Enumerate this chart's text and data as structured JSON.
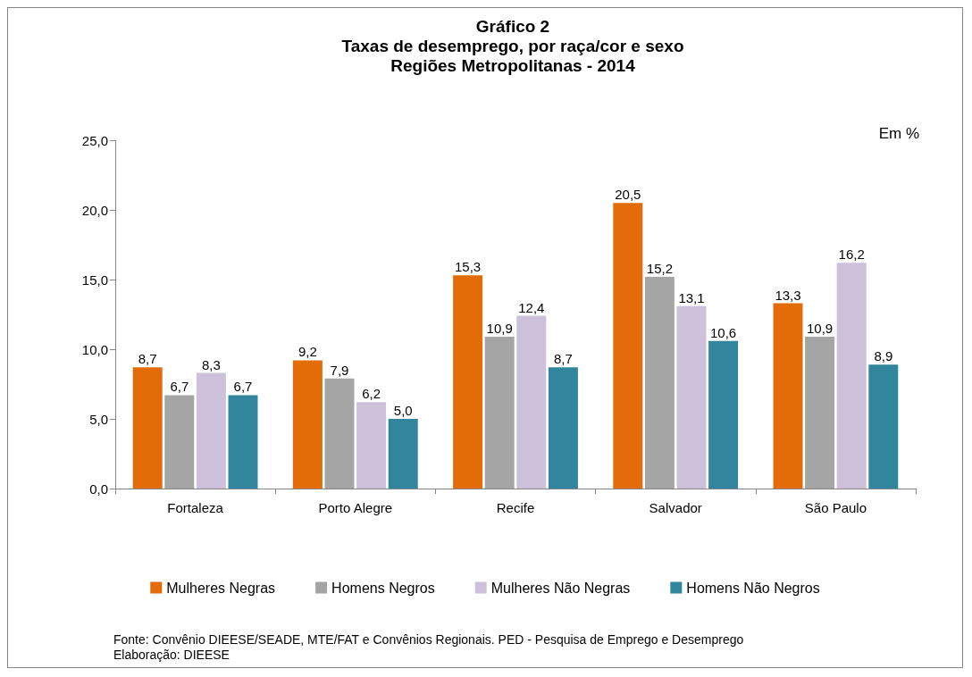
{
  "chart_data": {
    "type": "bar",
    "title": "Gráfico 2\nTaxas de desemprego, por raça/cor e sexo\nRegiões Metropolitanas - 2014",
    "ylabel": "Em %",
    "categories": [
      "Fortaleza",
      "Porto Alegre",
      "Recife",
      "Salvador",
      "São Paulo"
    ],
    "series": [
      {
        "name": "Mulheres Negras",
        "color": "#e36c09",
        "values": [
          8.7,
          9.2,
          15.3,
          20.5,
          13.3
        ],
        "value_labels": [
          "8,7",
          "9,2",
          "15,3",
          "20,5",
          "13,3"
        ]
      },
      {
        "name": "Homens Negros",
        "color": "#a5a5a5",
        "values": [
          6.7,
          7.9,
          10.9,
          15.2,
          10.9
        ],
        "value_labels": [
          "6,7",
          "7,9",
          "10,9",
          "15,2",
          "10,9"
        ]
      },
      {
        "name": "Mulheres Não Negras",
        "color": "#ccc0da",
        "values": [
          8.3,
          6.2,
          12.4,
          13.1,
          16.2
        ],
        "value_labels": [
          "8,3",
          "6,2",
          "12,4",
          "13,1",
          "16,2"
        ]
      },
      {
        "name": "Homens Não Negros",
        "color": "#31859c",
        "values": [
          6.7,
          5.0,
          8.7,
          10.6,
          8.9
        ],
        "value_labels": [
          "6,7",
          "5,0",
          "8,7",
          "10,6",
          "8,9"
        ]
      }
    ],
    "ylim": [
      0,
      25
    ],
    "yticks": [
      {
        "value": 0,
        "label": "0,0"
      },
      {
        "value": 5,
        "label": "5,0"
      },
      {
        "value": 10,
        "label": "10,0"
      },
      {
        "value": 15,
        "label": "15,0"
      },
      {
        "value": 20,
        "label": "20,0"
      },
      {
        "value": 25,
        "label": "25,0"
      }
    ],
    "grid": false,
    "legend": "bottom",
    "annotations": [
      "Fonte: Convênio DIEESE/SEADE, MTE/FAT e Convênios Regionais. PED - Pesquisa de Emprego e Desemprego",
      "Elaboração: DIEESE"
    ]
  }
}
